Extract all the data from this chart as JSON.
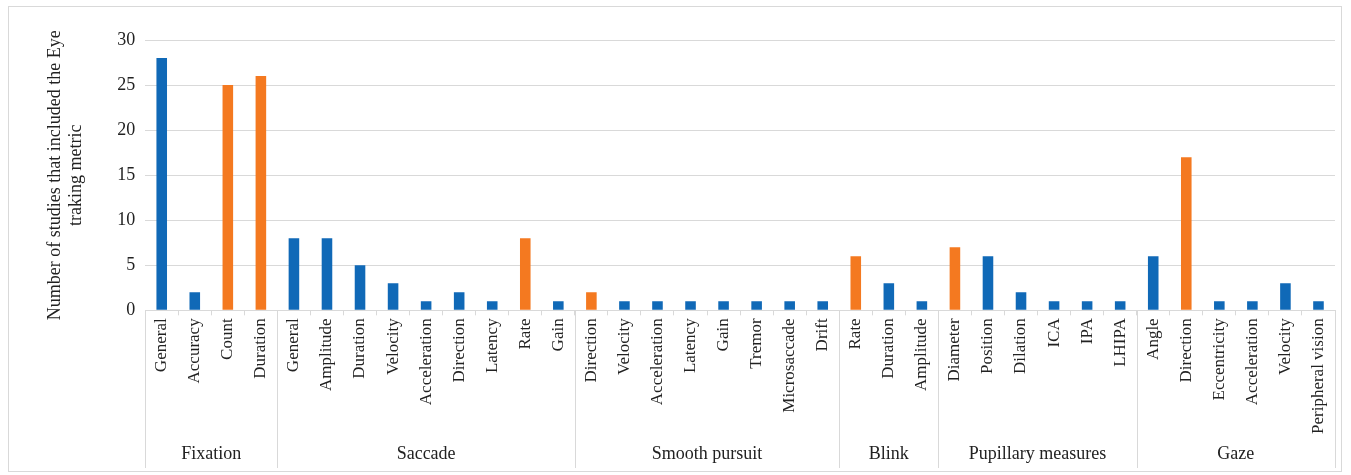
{
  "chart_data": {
    "type": "bar",
    "ylabel": "Number of studies that included the Eye traking metric",
    "categories": [
      "General",
      "Accuracy",
      "Count",
      "Duration",
      "General",
      "Amplitude",
      "Duration",
      "Velocity",
      "Acceleration",
      "Direction",
      "Latency",
      "Rate",
      "Gain",
      "Direction",
      "Velocity",
      "Acceleration",
      "Latency",
      "Gain",
      "Tremor",
      "Microsaccade",
      "Drift",
      "Rate",
      "Duration",
      "Amplitude",
      "Diameter",
      "Position",
      "Dilation",
      "ICA",
      "IPA",
      "LHIPA",
      "Angle",
      "Direction",
      "Eccentricity",
      "Acceleration",
      "Velocity",
      "Peripheral vision"
    ],
    "values": [
      28,
      2,
      25,
      26,
      8,
      8,
      5,
      3,
      1,
      2,
      1,
      8,
      1,
      2,
      1,
      1,
      1,
      1,
      1,
      1,
      1,
      6,
      3,
      1,
      7,
      6,
      2,
      1,
      1,
      1,
      6,
      17,
      1,
      1,
      3,
      1
    ],
    "colors": [
      "#1069b7",
      "#1069b7",
      "#f47920",
      "#f47920",
      "#1069b7",
      "#1069b7",
      "#1069b7",
      "#1069b7",
      "#1069b7",
      "#1069b7",
      "#1069b7",
      "#f47920",
      "#1069b7",
      "#f47920",
      "#1069b7",
      "#1069b7",
      "#1069b7",
      "#1069b7",
      "#1069b7",
      "#1069b7",
      "#1069b7",
      "#f47920",
      "#1069b7",
      "#1069b7",
      "#f47920",
      "#1069b7",
      "#1069b7",
      "#1069b7",
      "#1069b7",
      "#1069b7",
      "#1069b7",
      "#f47920",
      "#1069b7",
      "#1069b7",
      "#1069b7",
      "#1069b7"
    ],
    "annotations": [
      "Fixation",
      "Saccade",
      "Smooth pursuit",
      "Blink",
      "Pupillary measures",
      "Gaze"
    ],
    "ylim": [
      0,
      30
    ],
    "yticks": [
      0,
      5,
      10,
      15,
      20,
      25,
      30
    ],
    "grid": "y",
    "legend": false
  }
}
